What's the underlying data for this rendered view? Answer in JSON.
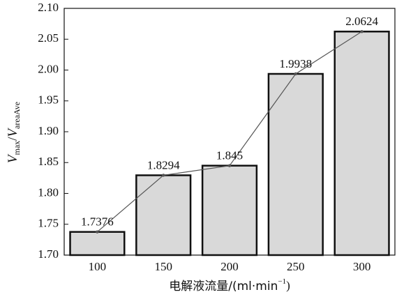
{
  "chart_data": {
    "type": "bar",
    "categories": [
      "100",
      "150",
      "200",
      "250",
      "300"
    ],
    "values": [
      1.7376,
      1.8294,
      1.845,
      1.9938,
      2.0624
    ],
    "color": "#d9d9d9",
    "edge_color": "#111111",
    "line_overlay": true,
    "line_color": "#555555",
    "ylim": [
      1.7,
      2.1
    ],
    "yticks": [
      {
        "value": 1.7,
        "label": "1.70"
      },
      {
        "value": 1.75,
        "label": "1.75"
      },
      {
        "value": 1.8,
        "label": "1.80"
      },
      {
        "value": 1.85,
        "label": "1.85"
      },
      {
        "value": 1.9,
        "label": "1.90"
      },
      {
        "value": 1.95,
        "label": "1.95"
      },
      {
        "value": 2.0,
        "label": "2.00"
      },
      {
        "value": 2.05,
        "label": "2.05"
      },
      {
        "value": 2.1,
        "label": "2.10"
      }
    ],
    "ylabel": {
      "v1": "V",
      "sub1": "max",
      "sep": "/",
      "v2": "V",
      "sub2": "areaAve"
    },
    "xlabel": {
      "text": "电解液流量/(ml·min",
      "sup": "−1",
      "close": ")"
    },
    "grid": false
  }
}
